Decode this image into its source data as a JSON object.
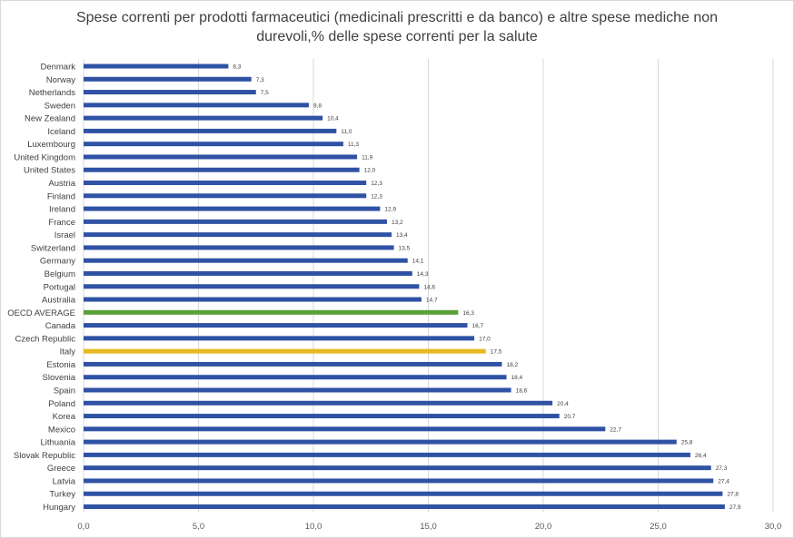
{
  "chart_data": {
    "type": "bar",
    "orientation": "horizontal",
    "title": "Spese correnti per prodotti farmaceutici (medicinali prescritti e da banco) e altre spese mediche non durevoli,% delle spese correnti per la salute",
    "categories": [
      "Denmark",
      "Norway",
      "Netherlands",
      "Sweden",
      "New Zealand",
      "Iceland",
      "Luxembourg",
      "United Kingdom",
      "United States",
      "Austria",
      "Finland",
      "Ireland",
      "France",
      "Israel",
      "Switzerland",
      "Germany",
      "Belgium",
      "Portugal",
      "Australia",
      "OECD AVERAGE",
      "Canada",
      "Czech Republic",
      "Italy",
      "Estonia",
      "Slovenia",
      "Spain",
      "Poland",
      "Korea",
      "Mexico",
      "Lithuania",
      "Slovak Republic",
      "Greece",
      "Latvia",
      "Turkey",
      "Hungary"
    ],
    "values": [
      6.3,
      7.3,
      7.5,
      9.8,
      10.4,
      11.0,
      11.3,
      11.9,
      12.0,
      12.3,
      12.3,
      12.9,
      13.2,
      13.4,
      13.5,
      14.1,
      14.3,
      14.6,
      14.7,
      16.3,
      16.7,
      17.0,
      17.5,
      18.2,
      18.4,
      18.6,
      20.4,
      20.7,
      22.7,
      25.8,
      26.4,
      27.3,
      27.4,
      27.8,
      27.9
    ],
    "value_labels": [
      "6,3",
      "7,3",
      "7,5",
      "9,8",
      "10,4",
      "11,0",
      "11,3",
      "11,9",
      "12,0",
      "12,3",
      "12,3",
      "12,9",
      "13,2",
      "13,4",
      "13,5",
      "14,1",
      "14,3",
      "14,6",
      "14,7",
      "16,3",
      "16,7",
      "17,0",
      "17,5",
      "18,2",
      "18,4",
      "18,6",
      "20,4",
      "20,7",
      "22,7",
      "25,8",
      "26,4",
      "27,3",
      "27,4",
      "27,8",
      "27,9"
    ],
    "xlim": [
      0,
      30
    ],
    "x_ticks": [
      "0,0",
      "5,0",
      "10,0",
      "15,0",
      "20,0",
      "25,0",
      "30,0"
    ],
    "grid": "vertical",
    "legend": "none",
    "colors": {
      "default": "#2f52a4",
      "highlights": {
        "OECD AVERAGE": "#5aa03a",
        "Italy": "#e8b923"
      },
      "grid": "#d9d9d9"
    }
  }
}
